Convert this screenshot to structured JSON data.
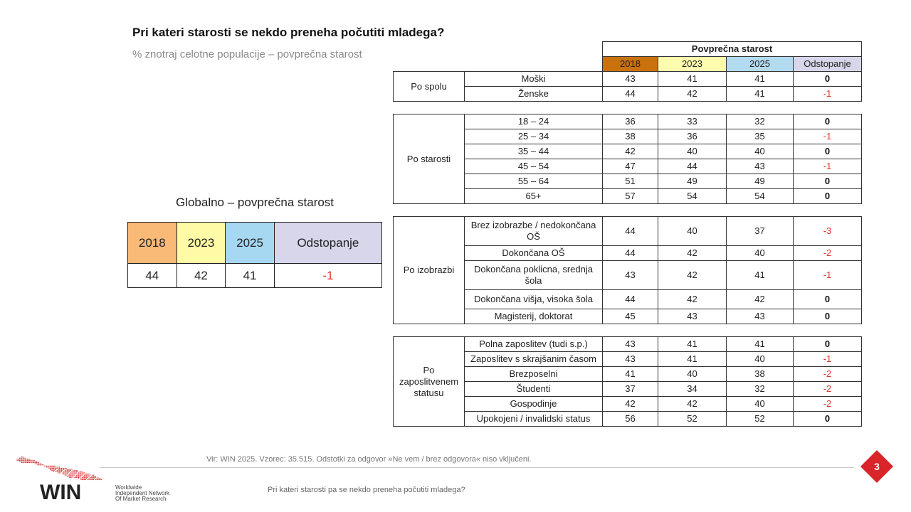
{
  "title": "Pri kateri starosti se nekdo preneha počutiti mladega?",
  "subtitle": "% znotraj celotne populacije – povprečna starost",
  "global": {
    "title": "Globalno – povprečna starost",
    "headers": [
      "2018",
      "2023",
      "2025",
      "Odstopanje"
    ],
    "values": [
      "44",
      "42",
      "41",
      "-1"
    ]
  },
  "table": {
    "group_header": "Povprečna starost",
    "year_headers": [
      "2018",
      "2023",
      "2025",
      "Odstopanje"
    ],
    "groups": [
      {
        "label": "Po spolu",
        "rows": [
          {
            "label": "Moški",
            "v2018": "43",
            "v2023": "41",
            "v2025": "41",
            "diff": "0"
          },
          {
            "label": "Ženske",
            "v2018": "44",
            "v2023": "42",
            "v2025": "41",
            "diff": "-1"
          }
        ]
      },
      {
        "label": "Po starosti",
        "rows": [
          {
            "label": "18 – 24",
            "v2018": "36",
            "v2023": "33",
            "v2025": "32",
            "diff": "0"
          },
          {
            "label": "25 – 34",
            "v2018": "38",
            "v2023": "36",
            "v2025": "35",
            "diff": "-1"
          },
          {
            "label": "35 – 44",
            "v2018": "42",
            "v2023": "40",
            "v2025": "40",
            "diff": "0"
          },
          {
            "label": "45 – 54",
            "v2018": "47",
            "v2023": "44",
            "v2025": "43",
            "diff": "-1"
          },
          {
            "label": "55 – 64",
            "v2018": "51",
            "v2023": "49",
            "v2025": "49",
            "diff": "0"
          },
          {
            "label": "65+",
            "v2018": "57",
            "v2023": "54",
            "v2025": "54",
            "diff": "0"
          }
        ]
      },
      {
        "label": "Po izobrazbi",
        "rows": [
          {
            "label": "Brez izobrazbe / nedokončana OŠ",
            "v2018": "44",
            "v2023": "40",
            "v2025": "37",
            "diff": "-3",
            "tall": true
          },
          {
            "label": "Dokončana OŠ",
            "v2018": "44",
            "v2023": "42",
            "v2025": "40",
            "diff": "-2"
          },
          {
            "label": "Dokončana poklicna, srednja šola",
            "v2018": "43",
            "v2023": "42",
            "v2025": "41",
            "diff": "-1",
            "tall": true
          },
          {
            "label": "Dokončana višja, visoka šola",
            "v2018": "44",
            "v2023": "42",
            "v2025": "42",
            "diff": "0",
            "mid": true
          },
          {
            "label": "Magisterij, doktorat",
            "v2018": "45",
            "v2023": "43",
            "v2025": "43",
            "diff": "0"
          }
        ]
      },
      {
        "label": "Po zaposlitvenem statusu",
        "rows": [
          {
            "label": "Polna zaposlitev (tudi s.p.)",
            "v2018": "43",
            "v2023": "41",
            "v2025": "41",
            "diff": "0"
          },
          {
            "label": "Zaposlitev s skrajšanim časom",
            "v2018": "43",
            "v2023": "41",
            "v2025": "40",
            "diff": "-1"
          },
          {
            "label": "Brezposelni",
            "v2018": "41",
            "v2023": "40",
            "v2025": "38",
            "diff": "-2"
          },
          {
            "label": "Študenti",
            "v2018": "37",
            "v2023": "34",
            "v2025": "32",
            "diff": "-2"
          },
          {
            "label": "Gospodinje",
            "v2018": "42",
            "v2023": "42",
            "v2025": "40",
            "diff": "-2"
          },
          {
            "label": "Upokojeni / invalidski status",
            "v2018": "56",
            "v2023": "52",
            "v2025": "52",
            "diff": "0"
          }
        ]
      }
    ]
  },
  "footer": {
    "source": "Vir: WIN 2025. Vzorec: 35.515. Odstotki za odgovor »Ne vem / brez odgovora« niso vključeni.",
    "question": "Pri kateri starosti pa se nekdo preneha počutiti mladega?",
    "page_number": "3"
  },
  "logo": {
    "wordmark": "WIN",
    "tagline": [
      "Worldwide",
      "Independent Network",
      "Of Market Research"
    ]
  },
  "colors": {
    "y2018_global": "#f9b977",
    "y2018_table": "#c9710d",
    "y2023": "#fefaa5",
    "y2025": "#a6d8f2",
    "odstopanje": "#d8d6ea",
    "negative": "#e0362f",
    "badge": "#d9252a"
  }
}
